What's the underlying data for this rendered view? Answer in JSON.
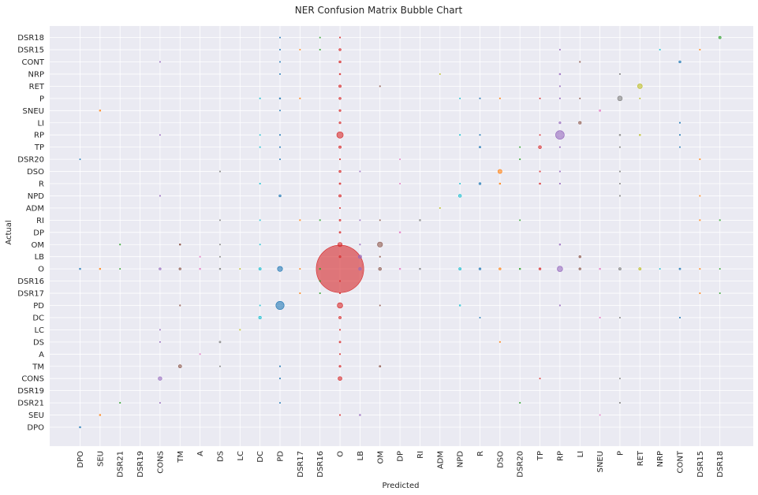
{
  "chart_data": {
    "type": "scatter",
    "title": "NER Confusion Matrix Bubble Chart",
    "xlabel": "Predicted",
    "ylabel": "Actual",
    "grid": true,
    "x_categories": [
      "DPO",
      "SEU",
      "DSR21",
      "DSR19",
      "CONS",
      "TM",
      "A",
      "DS",
      "LC",
      "DC",
      "PD",
      "DSR17",
      "DSR16",
      "O",
      "LB",
      "OM",
      "DP",
      "RI",
      "ADM",
      "NPD",
      "R",
      "DSO",
      "DSR20",
      "TP",
      "RP",
      "LI",
      "SNEU",
      "P",
      "RET",
      "NRP",
      "CONT",
      "DSR15",
      "DSR18"
    ],
    "y_categories": [
      "DPO",
      "SEU",
      "DSR21",
      "DSR19",
      "CONS",
      "TM",
      "A",
      "DS",
      "LC",
      "DC",
      "PD",
      "DSR17",
      "DSR16",
      "O",
      "LB",
      "OM",
      "DP",
      "RI",
      "ADM",
      "NPD",
      "R",
      "DSO",
      "DSR20",
      "TP",
      "RP",
      "LI",
      "SNEU",
      "P",
      "RET",
      "NRP",
      "CONT",
      "DSR15",
      "DSR18"
    ],
    "palette": [
      "#1f77b4",
      "#ff7f0e",
      "#2ca02c",
      "#d62728",
      "#9467bd",
      "#8c564b",
      "#e377c2",
      "#7f7f7f",
      "#bcbd22",
      "#17becf"
    ],
    "size_unit": "count",
    "points": [
      {
        "x": "O",
        "y": "O",
        "v": 3000
      },
      {
        "x": "PD",
        "y": "PD",
        "v": 90
      },
      {
        "x": "RP",
        "y": "RP",
        "v": 100
      },
      {
        "x": "O",
        "y": "RP",
        "v": 55
      },
      {
        "x": "OM",
        "y": "OM",
        "v": 35
      },
      {
        "x": "O",
        "y": "PD",
        "v": 40
      },
      {
        "x": "RET",
        "y": "RET",
        "v": 30
      },
      {
        "x": "P",
        "y": "P",
        "v": 30
      },
      {
        "x": "RP",
        "y": "O",
        "v": 40
      },
      {
        "x": "PD",
        "y": "O",
        "v": 35
      },
      {
        "x": "O",
        "y": "OM",
        "v": 25
      },
      {
        "x": "DSO",
        "y": "DSO",
        "v": 22
      },
      {
        "x": "O",
        "y": "CONS",
        "v": 20
      },
      {
        "x": "CONS",
        "y": "CONS",
        "v": 18
      },
      {
        "x": "TM",
        "y": "TM",
        "v": 14
      },
      {
        "x": "LB",
        "y": "LB",
        "v": 16
      },
      {
        "x": "NPD",
        "y": "NPD",
        "v": 12
      },
      {
        "x": "TP",
        "y": "TP",
        "v": 12
      },
      {
        "x": "LI",
        "y": "LI",
        "v": 10
      },
      {
        "x": "DC",
        "y": "DC",
        "v": 10
      },
      {
        "x": "DSR18",
        "y": "DSR18",
        "v": 8
      },
      {
        "x": "CONT",
        "y": "CONT",
        "v": 6
      },
      {
        "x": "OM",
        "y": "O",
        "v": 12
      },
      {
        "x": "LB",
        "y": "O",
        "v": 10
      },
      {
        "x": "O",
        "y": "RET",
        "v": 8
      },
      {
        "x": "O",
        "y": "TP",
        "v": 8
      },
      {
        "x": "O",
        "y": "NPD",
        "v": 8
      },
      {
        "x": "O",
        "y": "DC",
        "v": 8
      },
      {
        "x": "O",
        "y": "DSO",
        "v": 6
      },
      {
        "x": "O",
        "y": "P",
        "v": 6
      },
      {
        "x": "R",
        "y": "R",
        "v": 6
      },
      {
        "x": "PD",
        "y": "NPD",
        "v": 6
      },
      {
        "x": "DC",
        "y": "O",
        "v": 8
      },
      {
        "x": "CONS",
        "y": "O",
        "v": 6
      },
      {
        "x": "TM",
        "y": "O",
        "v": 6
      },
      {
        "x": "NPD",
        "y": "O",
        "v": 8
      },
      {
        "x": "P",
        "y": "O",
        "v": 8
      },
      {
        "x": "RET",
        "y": "O",
        "v": 8
      },
      {
        "x": "LI",
        "y": "O",
        "v": 6
      },
      {
        "x": "TP",
        "y": "O",
        "v": 6
      },
      {
        "x": "DSO",
        "y": "O",
        "v": 6
      },
      {
        "x": "R",
        "y": "O",
        "v": 6
      },
      {
        "x": "LI",
        "y": "LB",
        "v": 6
      },
      {
        "x": "O",
        "y": "DSR15",
        "v": 6
      },
      {
        "x": "O",
        "y": "CONT",
        "v": 6
      },
      {
        "x": "O",
        "y": "SNEU",
        "v": 5
      },
      {
        "x": "O",
        "y": "LI",
        "v": 5
      },
      {
        "x": "O",
        "y": "TM",
        "v": 5
      },
      {
        "x": "O",
        "y": "DS",
        "v": 4
      },
      {
        "x": "RP",
        "y": "LI",
        "v": 5
      },
      {
        "x": "R",
        "y": "TP",
        "v": 4
      },
      {
        "x": "SNEU",
        "y": "SNEU",
        "v": 4
      },
      {
        "x": "DS",
        "y": "DS",
        "v": 4
      },
      {
        "x": "SEU",
        "y": "SNEU",
        "v": 3
      },
      {
        "x": "SEU",
        "y": "SEU",
        "v": 3
      },
      {
        "x": "DPO",
        "y": "DPO",
        "v": 3
      },
      {
        "x": "DP",
        "y": "DP",
        "v": 3
      },
      {
        "x": "RI",
        "y": "RI",
        "v": 3
      },
      {
        "x": "OM",
        "y": "TM",
        "v": 4
      },
      {
        "x": "DSO",
        "y": "R",
        "v": 3
      },
      {
        "x": "TP",
        "y": "R",
        "v": 3
      },
      {
        "x": "O",
        "y": "RI",
        "v": 4
      },
      {
        "x": "O",
        "y": "R",
        "v": 4
      },
      {
        "x": "O",
        "y": "DP",
        "v": 4
      },
      {
        "x": "RP",
        "y": "NRP",
        "v": 3
      },
      {
        "x": "O",
        "y": "LB",
        "v": 5
      },
      {
        "x": "DPO",
        "y": "O",
        "v": 3
      },
      {
        "x": "SEU",
        "y": "O",
        "v": 3
      },
      {
        "x": "A",
        "y": "O",
        "v": 3
      },
      {
        "x": "DS",
        "y": "O",
        "v": 3
      },
      {
        "x": "DSR16",
        "y": "O",
        "v": 3
      },
      {
        "x": "DP",
        "y": "O",
        "v": 3
      },
      {
        "x": "RI",
        "y": "O",
        "v": 3
      },
      {
        "x": "DSR20",
        "y": "O",
        "v": 3
      },
      {
        "x": "SNEU",
        "y": "O",
        "v": 3
      },
      {
        "x": "CONT",
        "y": "O",
        "v": 4
      },
      {
        "x": "DSR15",
        "y": "O",
        "v": 2
      },
      {
        "x": "TM",
        "y": "OM",
        "v": 3
      },
      {
        "x": "A",
        "y": "LB",
        "v": 2
      },
      {
        "x": "P",
        "y": "RP",
        "v": 3
      },
      {
        "x": "RET",
        "y": "RP",
        "v": 3
      },
      {
        "x": "DSR20",
        "y": "DSR21",
        "v": 2
      },
      {
        "x": "DSR15",
        "y": "DSR15",
        "v": 2
      },
      {
        "x": "DSR16",
        "y": "DSR15",
        "v": 2
      },
      {
        "x": "O",
        "y": "NRP",
        "v": 3
      },
      {
        "x": "O",
        "y": "SEU",
        "v": 2
      },
      {
        "x": "LB",
        "y": "SEU",
        "v": 3
      },
      {
        "x": "O",
        "y": "DSR18",
        "v": 2
      },
      {
        "x": "O",
        "y": "DSR16",
        "v": 2
      },
      {
        "x": "O",
        "y": "DSR17",
        "v": 2
      },
      {
        "x": "O",
        "y": "DSR20",
        "v": 2
      },
      {
        "x": "O",
        "y": "ADM",
        "v": 2
      },
      {
        "x": "O",
        "y": "A",
        "v": 2
      },
      {
        "x": "O",
        "y": "LC",
        "v": 2
      },
      {
        "x": "DSR16",
        "y": "DSR16",
        "v": 2
      },
      {
        "x": "DSR17",
        "y": "DSR17",
        "v": 2
      },
      {
        "x": "ADM",
        "y": "ADM",
        "v": 2
      },
      {
        "x": "LC",
        "y": "LC",
        "v": 2
      },
      {
        "x": "A",
        "y": "A",
        "v": 2
      },
      {
        "x": "DSR20",
        "y": "DSR20",
        "v": 2
      },
      {
        "x": "DSR15",
        "y": "RI",
        "v": 2
      },
      {
        "x": "DSR18",
        "y": "RI",
        "v": 2
      },
      {
        "x": "PD",
        "y": "P",
        "v": 3
      },
      {
        "x": "PD",
        "y": "TP",
        "v": 2
      },
      {
        "x": "PD",
        "y": "RP",
        "v": 2
      },
      {
        "x": "PD",
        "y": "TM",
        "v": 2
      },
      {
        "x": "PD",
        "y": "CONS",
        "v": 2
      },
      {
        "x": "DC",
        "y": "R",
        "v": 2
      },
      {
        "x": "DC",
        "y": "TP",
        "v": 2
      },
      {
        "x": "DC",
        "y": "P",
        "v": 2
      },
      {
        "x": "RP",
        "y": "RET",
        "v": 2
      },
      {
        "x": "RP",
        "y": "P",
        "v": 2
      },
      {
        "x": "RP",
        "y": "TP",
        "v": 2
      },
      {
        "x": "RP",
        "y": "DSO",
        "v": 2
      },
      {
        "x": "RP",
        "y": "R",
        "v": 2
      },
      {
        "x": "RP",
        "y": "OM",
        "v": 3
      },
      {
        "x": "RP",
        "y": "DSR15",
        "v": 2
      },
      {
        "x": "RP",
        "y": "PD",
        "v": 2
      },
      {
        "x": "TP",
        "y": "DSO",
        "v": 2
      },
      {
        "x": "OM",
        "y": "RET",
        "v": 2
      },
      {
        "x": "DSO",
        "y": "P",
        "v": 2
      },
      {
        "x": "DSO",
        "y": "DS",
        "v": 2
      },
      {
        "x": "LB",
        "y": "OM",
        "v": 2
      },
      {
        "x": "OM",
        "y": "LB",
        "v": 2
      },
      {
        "x": "TM",
        "y": "OM",
        "v": 2
      },
      {
        "x": "TM",
        "y": "PD",
        "v": 2
      },
      {
        "x": "DS",
        "y": "DSO",
        "v": 2
      },
      {
        "x": "DSR21",
        "y": "OM",
        "v": 2
      },
      {
        "x": "DSR21",
        "y": "DSR21",
        "v": 2
      },
      {
        "x": "CONS",
        "y": "NPD",
        "v": 2
      },
      {
        "x": "DSR17",
        "y": "P",
        "v": 2
      },
      {
        "x": "DSR17",
        "y": "RI",
        "v": 2
      },
      {
        "x": "DSR16",
        "y": "RI",
        "v": 2
      },
      {
        "x": "DSR16",
        "y": "DSR17",
        "v": 2
      },
      {
        "x": "NPD",
        "y": "PD",
        "v": 3
      },
      {
        "x": "NPD",
        "y": "RP",
        "v": 2
      },
      {
        "x": "R",
        "y": "RP",
        "v": 2
      },
      {
        "x": "R",
        "y": "P",
        "v": 2
      },
      {
        "x": "LI",
        "y": "CONT",
        "v": 2
      },
      {
        "x": "P",
        "y": "NRP",
        "v": 2
      },
      {
        "x": "P",
        "y": "DSR21",
        "v": 2
      },
      {
        "x": "P",
        "y": "TP",
        "v": 2
      },
      {
        "x": "P",
        "y": "NPD",
        "v": 2
      },
      {
        "x": "P",
        "y": "DSO",
        "v": 2
      },
      {
        "x": "SNEU",
        "y": "DC",
        "v": 2
      },
      {
        "x": "CONT",
        "y": "RP",
        "v": 2
      },
      {
        "x": "CONT",
        "y": "LI",
        "v": 2
      },
      {
        "x": "CONT",
        "y": "DC",
        "v": 2
      },
      {
        "x": "DSR15",
        "y": "DSR20",
        "v": 2
      },
      {
        "x": "DSR15",
        "y": "DSR17",
        "v": 2
      },
      {
        "x": "NRP",
        "y": "DSR15",
        "v": 2
      },
      {
        "x": "DPO",
        "y": "DSR20",
        "v": 1
      },
      {
        "x": "CONS",
        "y": "CONT",
        "v": 1
      },
      {
        "x": "CONS",
        "y": "DS",
        "v": 1
      },
      {
        "x": "CONS",
        "y": "LC",
        "v": 1
      },
      {
        "x": "CONS",
        "y": "DSR21",
        "v": 1
      },
      {
        "x": "CONS",
        "y": "RP",
        "v": 1
      },
      {
        "x": "DSR21",
        "y": "O",
        "v": 1
      },
      {
        "x": "DSR17",
        "y": "O",
        "v": 1
      },
      {
        "x": "DS",
        "y": "TM",
        "v": 1
      },
      {
        "x": "DS",
        "y": "LB",
        "v": 1
      },
      {
        "x": "DS",
        "y": "OM",
        "v": 1
      },
      {
        "x": "DS",
        "y": "RI",
        "v": 1
      },
      {
        "x": "DC",
        "y": "PD",
        "v": 1
      },
      {
        "x": "DC",
        "y": "OM",
        "v": 1
      },
      {
        "x": "DC",
        "y": "RI",
        "v": 1
      },
      {
        "x": "DC",
        "y": "RP",
        "v": 1
      },
      {
        "x": "LC",
        "y": "O",
        "v": 1
      },
      {
        "x": "DP",
        "y": "DSR20",
        "v": 1
      },
      {
        "x": "DP",
        "y": "R",
        "v": 1
      },
      {
        "x": "ADM",
        "y": "NRP",
        "v": 1
      },
      {
        "x": "NPD",
        "y": "P",
        "v": 1
      },
      {
        "x": "NPD",
        "y": "R",
        "v": 1
      },
      {
        "x": "R",
        "y": "DC",
        "v": 1
      },
      {
        "x": "DSR20",
        "y": "TP",
        "v": 1
      },
      {
        "x": "DSR20",
        "y": "RI",
        "v": 1
      },
      {
        "x": "TP",
        "y": "P",
        "v": 1
      },
      {
        "x": "TP",
        "y": "CONS",
        "v": 1
      },
      {
        "x": "TP",
        "y": "RP",
        "v": 1
      },
      {
        "x": "LI",
        "y": "P",
        "v": 1
      },
      {
        "x": "SNEU",
        "y": "SEU",
        "v": 1
      },
      {
        "x": "P",
        "y": "DC",
        "v": 1
      },
      {
        "x": "P",
        "y": "CONS",
        "v": 1
      },
      {
        "x": "P",
        "y": "R",
        "v": 1
      },
      {
        "x": "RET",
        "y": "P",
        "v": 1
      },
      {
        "x": "NRP",
        "y": "O",
        "v": 1
      },
      {
        "x": "CONT",
        "y": "TP",
        "v": 1
      },
      {
        "x": "DSR15",
        "y": "NPD",
        "v": 1
      },
      {
        "x": "DSR18",
        "y": "O",
        "v": 1
      },
      {
        "x": "DSR18",
        "y": "DSR17",
        "v": 1
      },
      {
        "x": "LB",
        "y": "RI",
        "v": 1
      },
      {
        "x": "LB",
        "y": "DSO",
        "v": 1
      },
      {
        "x": "OM",
        "y": "PD",
        "v": 1
      },
      {
        "x": "OM",
        "y": "RI",
        "v": 1
      },
      {
        "x": "PD",
        "y": "DSR18",
        "v": 1
      },
      {
        "x": "PD",
        "y": "DSR15",
        "v": 1
      },
      {
        "x": "PD",
        "y": "CONT",
        "v": 1
      },
      {
        "x": "PD",
        "y": "NRP",
        "v": 1
      },
      {
        "x": "PD",
        "y": "SNEU",
        "v": 1
      },
      {
        "x": "PD",
        "y": "DSR20",
        "v": 1
      },
      {
        "x": "PD",
        "y": "DSR21",
        "v": 1
      },
      {
        "x": "DSR16",
        "y": "DSR18",
        "v": 1
      },
      {
        "x": "DSR17",
        "y": "DSR15",
        "v": 1
      }
    ]
  }
}
